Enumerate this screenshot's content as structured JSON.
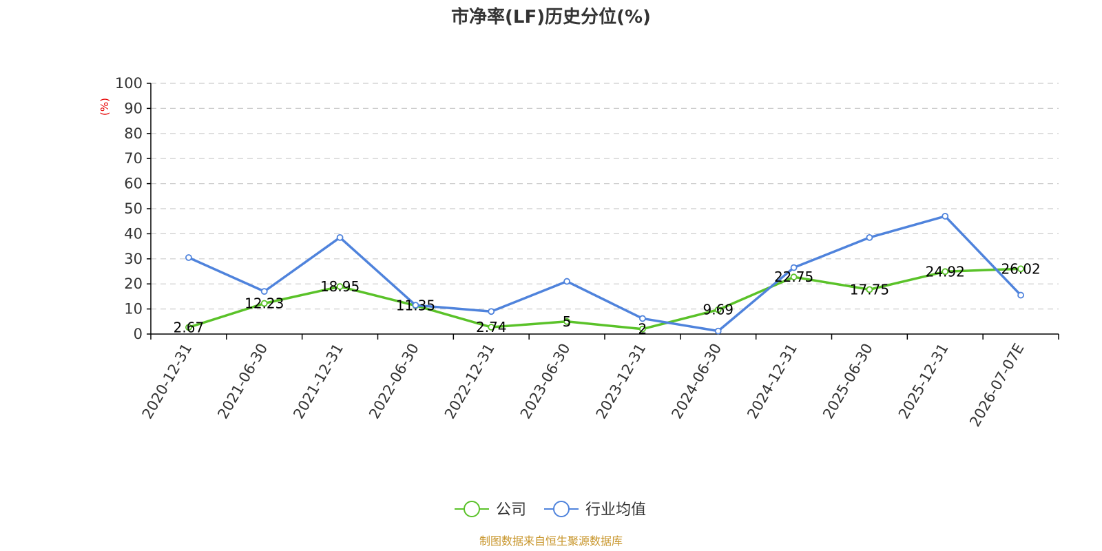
{
  "colors": {
    "company": "#5ac229",
    "industry": "#4f83dc",
    "unit": "#e60000",
    "source": "#c8962c"
  },
  "chart_data": {
    "type": "line",
    "title": "市净率(LF)历史分位(%)",
    "ylabel": "(%)",
    "ylim": [
      0,
      100
    ],
    "yticks": [
      0,
      10,
      20,
      30,
      40,
      50,
      60,
      70,
      80,
      90,
      100
    ],
    "grid": true,
    "legend_position": "bottom",
    "categories": [
      "2020-12-31",
      "2021-06-30",
      "2021-12-31",
      "2022-06-30",
      "2022-12-31",
      "2023-06-30",
      "2023-12-31",
      "2024-06-30",
      "2024-12-31",
      "2025-06-30",
      "2025-12-31",
      "2026-07-07E"
    ],
    "series": [
      {
        "name": "公司",
        "color": "#5ac229",
        "values": [
          2.67,
          12.23,
          18.95,
          11.35,
          2.74,
          5,
          2,
          9.69,
          22.75,
          17.75,
          24.92,
          26.02
        ],
        "labels": [
          "2.67",
          "12.23",
          "18.95",
          "11.35",
          "2.74",
          "5",
          "2",
          "9.69",
          "22.75",
          "17.75",
          "24.92",
          "26.02"
        ]
      },
      {
        "name": "行业均值",
        "color": "#4f83dc",
        "values": [
          30.5,
          17,
          38.5,
          11.5,
          9,
          21,
          6.2,
          1.2,
          26.5,
          38.5,
          47,
          15.5
        ]
      }
    ]
  },
  "legend": [
    {
      "name": "公司",
      "color": "#5ac229"
    },
    {
      "name": "行业均值",
      "color": "#4f83dc"
    }
  ],
  "source": "制图数据来自恒生聚源数据库"
}
